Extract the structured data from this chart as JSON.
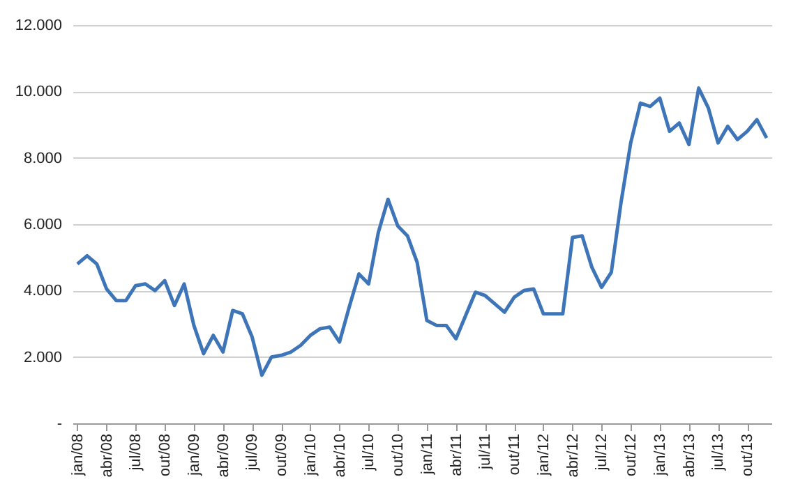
{
  "chart_data": {
    "type": "line",
    "categories": [
      "jan/08",
      null,
      null,
      "abr/08",
      null,
      null,
      "jul/08",
      null,
      null,
      "out/08",
      null,
      null,
      "jan/09",
      null,
      null,
      "abr/09",
      null,
      null,
      "jul/09",
      null,
      null,
      "out/09",
      null,
      null,
      "jan/10",
      null,
      null,
      "abr/10",
      null,
      null,
      "jul/10",
      null,
      null,
      "out/10",
      null,
      null,
      "jan/11",
      null,
      null,
      "abr/11",
      null,
      null,
      "jul/11",
      null,
      null,
      "out/11",
      null,
      null,
      "jan/12",
      null,
      null,
      "abr/12",
      null,
      null,
      "jul/12",
      null,
      null,
      "out/12",
      null,
      null,
      "jan/13",
      null,
      null,
      "abr/13",
      null,
      null,
      "jul/13",
      null,
      null,
      "out/13",
      null,
      null
    ],
    "series": [
      {
        "color": "#3e75b8",
        "values": [
          4800,
          5050,
          4800,
          4050,
          3700,
          3700,
          4150,
          4200,
          4000,
          4300,
          3550,
          4200,
          2950,
          2100,
          2650,
          2150,
          3400,
          3300,
          2600,
          1450,
          2000,
          2050,
          2150,
          2350,
          2650,
          2850,
          2900,
          2450,
          3500,
          4500,
          4200,
          5750,
          6750,
          5950,
          5650,
          4850,
          3100,
          2950,
          2950,
          2550,
          3250,
          3950,
          3850,
          3600,
          3350,
          3800,
          4000,
          4050,
          3300,
          3300,
          3300,
          5600,
          5650,
          4700,
          4100,
          4550,
          6650,
          8450,
          9650,
          9550,
          9800,
          8800,
          9050,
          8400,
          10100,
          9500,
          8450,
          8950,
          8550,
          8800,
          9150,
          8600
        ]
      }
    ],
    "ylim": [
      0,
      12000
    ],
    "yticks": [
      {
        "value": 0,
        "label": "-"
      },
      {
        "value": 2000,
        "label": "2.000"
      },
      {
        "value": 4000,
        "label": "4.000"
      },
      {
        "value": 6000,
        "label": "6.000"
      },
      {
        "value": 8000,
        "label": "8.000"
      },
      {
        "value": 10000,
        "label": "10.000"
      },
      {
        "value": 12000,
        "label": "12.000"
      }
    ],
    "grid": "y",
    "marker": "none",
    "line_style": "solid"
  }
}
